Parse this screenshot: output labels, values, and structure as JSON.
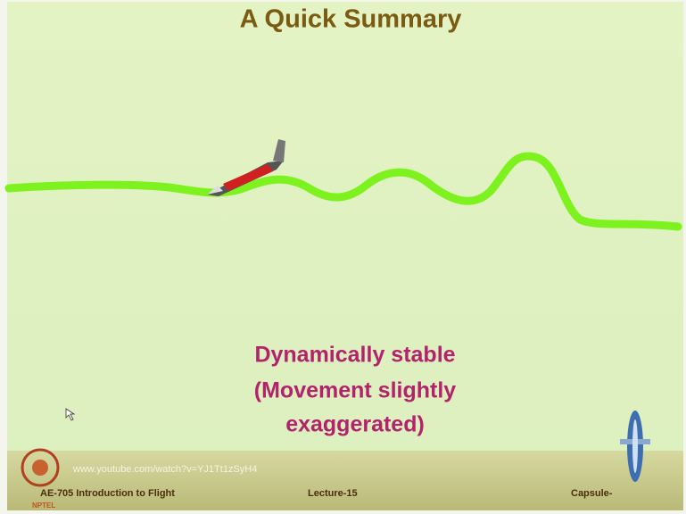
{
  "slide": {
    "title": "A Quick Summary",
    "caption": [
      "Dynamically stable",
      "(Movement slightly",
      "exaggerated)"
    ]
  },
  "footer": {
    "url": "www.youtube.com/watch?v=YJ1Tt1zSyH4",
    "course": "AE-705 Introduction to Flight",
    "lecture": "Lecture-15",
    "capsule": "Capsule-",
    "logo": "NPTEL"
  }
}
